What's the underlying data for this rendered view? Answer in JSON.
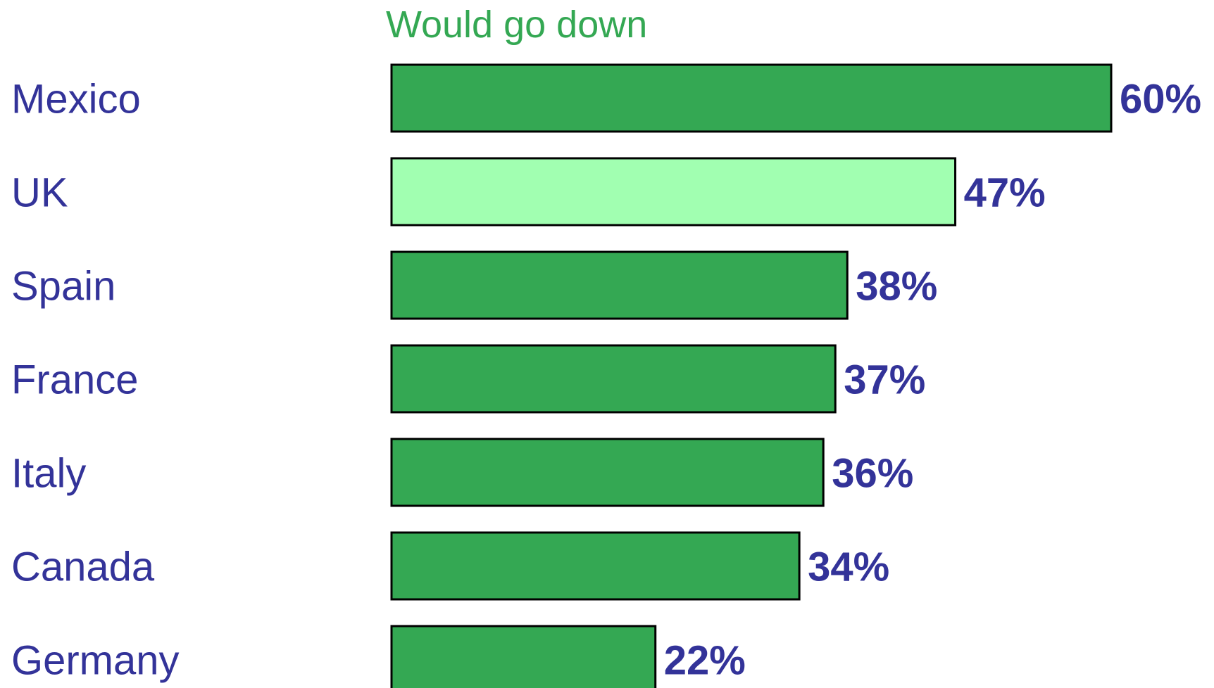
{
  "chart_data": {
    "type": "bar",
    "orientation": "horizontal",
    "title": "Would go down",
    "categories": [
      "Mexico",
      "UK",
      "Spain",
      "France",
      "Italy",
      "Canada",
      "Germany"
    ],
    "values": [
      60,
      47,
      38,
      37,
      36,
      34,
      22
    ],
    "value_labels": [
      "60%",
      "47%",
      "38%",
      "37%",
      "36%",
      "34%",
      "22%"
    ],
    "unit": "%",
    "xlim": [
      0,
      60
    ],
    "grid": false,
    "legend": "none"
  },
  "colors": {
    "bar": "#34a853",
    "highlight_bar": "#a1ffb1",
    "label": "#333399",
    "title": "#34a853"
  },
  "highlight_category": "UK"
}
